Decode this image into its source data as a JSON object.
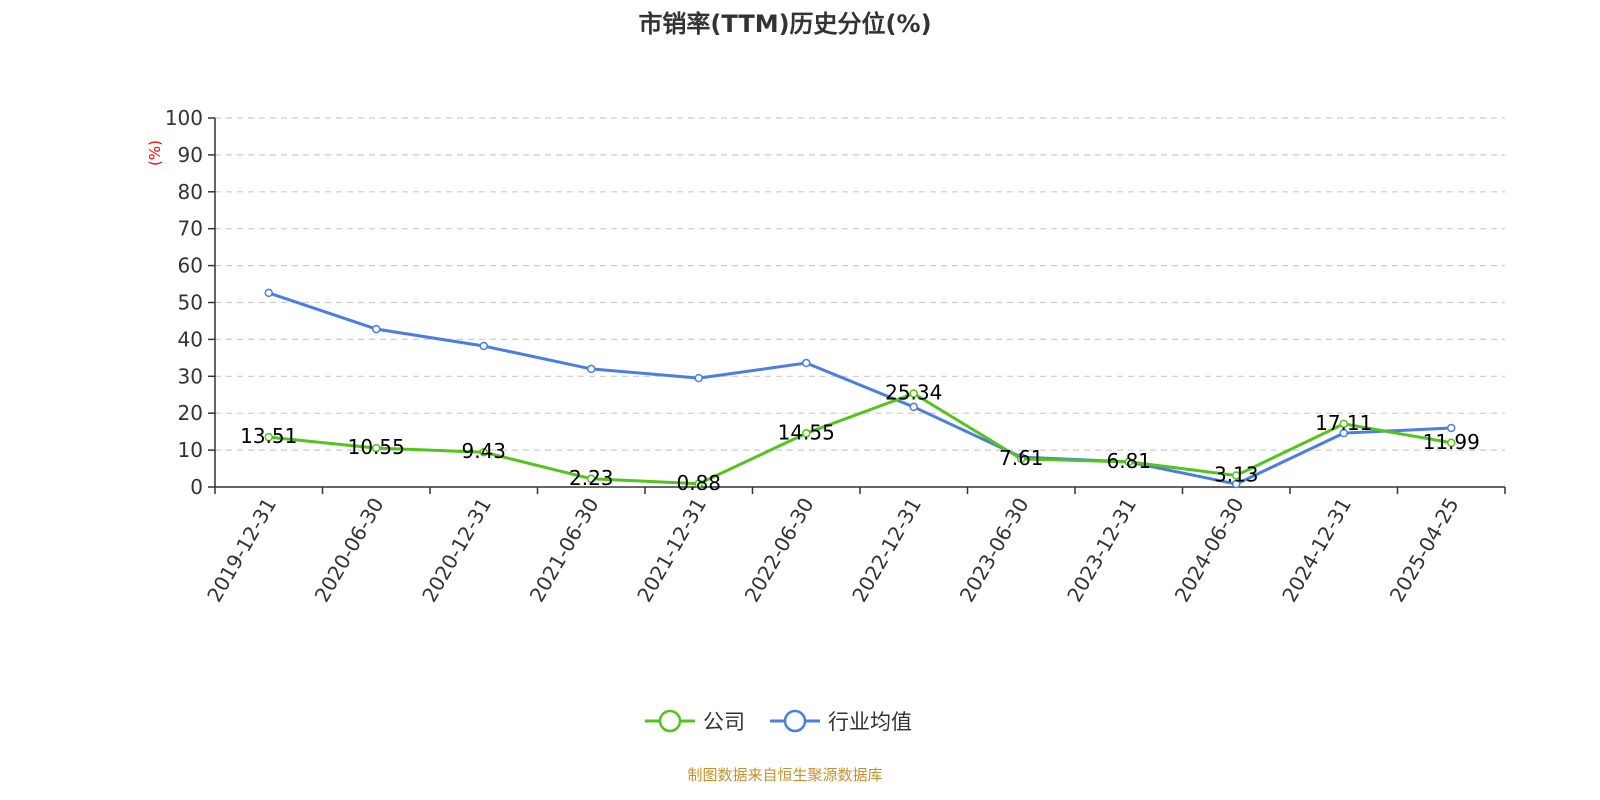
{
  "chart_data": {
    "type": "line",
    "title": "市销率(TTM)历史分位(%)",
    "ylabel": "(%)",
    "xlabel": "",
    "ylim": [
      0,
      100
    ],
    "yticks": [
      0,
      10,
      20,
      30,
      40,
      50,
      60,
      70,
      80,
      90,
      100
    ],
    "grid": true,
    "legend_position": "bottom",
    "categories": [
      "2019-12-31",
      "2020-06-30",
      "2020-12-31",
      "2021-06-30",
      "2021-12-31",
      "2022-06-30",
      "2022-12-31",
      "2023-06-30",
      "2023-12-31",
      "2024-06-30",
      "2024-12-31",
      "2025-04-25"
    ],
    "series": [
      {
        "name": "公司",
        "color": "#52c41a",
        "values": [
          13.51,
          10.55,
          9.43,
          2.23,
          0.88,
          14.55,
          25.34,
          7.61,
          6.81,
          3.13,
          17.11,
          11.99
        ],
        "labels": [
          "13.51",
          "10.55",
          "9.43",
          "2.23",
          "0.88",
          "14.55",
          "25.34",
          "7.61",
          "6.81",
          "3.13",
          "17.11",
          "11.99"
        ]
      },
      {
        "name": "行业均值",
        "color": "#4a7ee0",
        "values": [
          52.6,
          42.8,
          38.2,
          32.0,
          29.5,
          33.6,
          21.7,
          8.1,
          6.8,
          0.8,
          14.6,
          16.0
        ]
      }
    ],
    "source": "制图数据来自恒生聚源数据库"
  }
}
